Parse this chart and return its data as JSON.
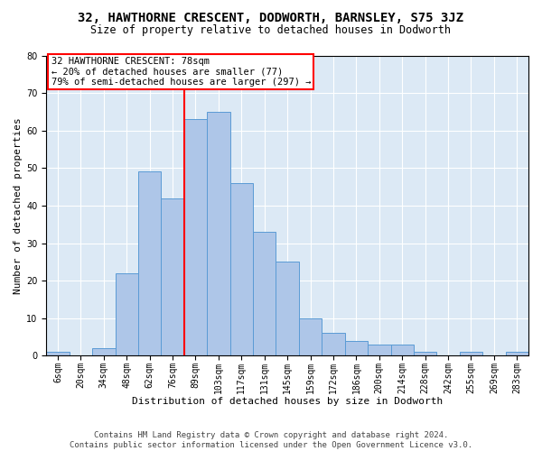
{
  "title": "32, HAWTHORNE CRESCENT, DODWORTH, BARNSLEY, S75 3JZ",
  "subtitle": "Size of property relative to detached houses in Dodworth",
  "xlabel": "Distribution of detached houses by size in Dodworth",
  "ylabel": "Number of detached properties",
  "footnote": "Contains HM Land Registry data © Crown copyright and database right 2024.\nContains public sector information licensed under the Open Government Licence v3.0.",
  "categories": [
    "6sqm",
    "20sqm",
    "34sqm",
    "48sqm",
    "62sqm",
    "76sqm",
    "89sqm",
    "103sqm",
    "117sqm",
    "131sqm",
    "145sqm",
    "159sqm",
    "172sqm",
    "186sqm",
    "200sqm",
    "214sqm",
    "228sqm",
    "242sqm",
    "255sqm",
    "269sqm",
    "283sqm"
  ],
  "values": [
    1,
    0,
    2,
    22,
    49,
    42,
    63,
    65,
    46,
    33,
    25,
    10,
    6,
    4,
    3,
    3,
    1,
    0,
    1,
    0,
    1
  ],
  "bar_color": "#aec6e8",
  "bar_edge_color": "#5a9bd5",
  "background_color": "#dce9f5",
  "grid_color": "#ffffff",
  "annotation_text": "32 HAWTHORNE CRESCENT: 78sqm\n← 20% of detached houses are smaller (77)\n79% of semi-detached houses are larger (297) →",
  "annotation_box_color": "white",
  "annotation_box_edge_color": "red",
  "vline_color": "red",
  "ylim": [
    0,
    80
  ],
  "yticks": [
    0,
    10,
    20,
    30,
    40,
    50,
    60,
    70,
    80
  ],
  "title_fontsize": 10,
  "subtitle_fontsize": 8.5,
  "axis_label_fontsize": 8,
  "tick_fontsize": 7,
  "annotation_fontsize": 7.5,
  "footnote_fontsize": 6.5
}
